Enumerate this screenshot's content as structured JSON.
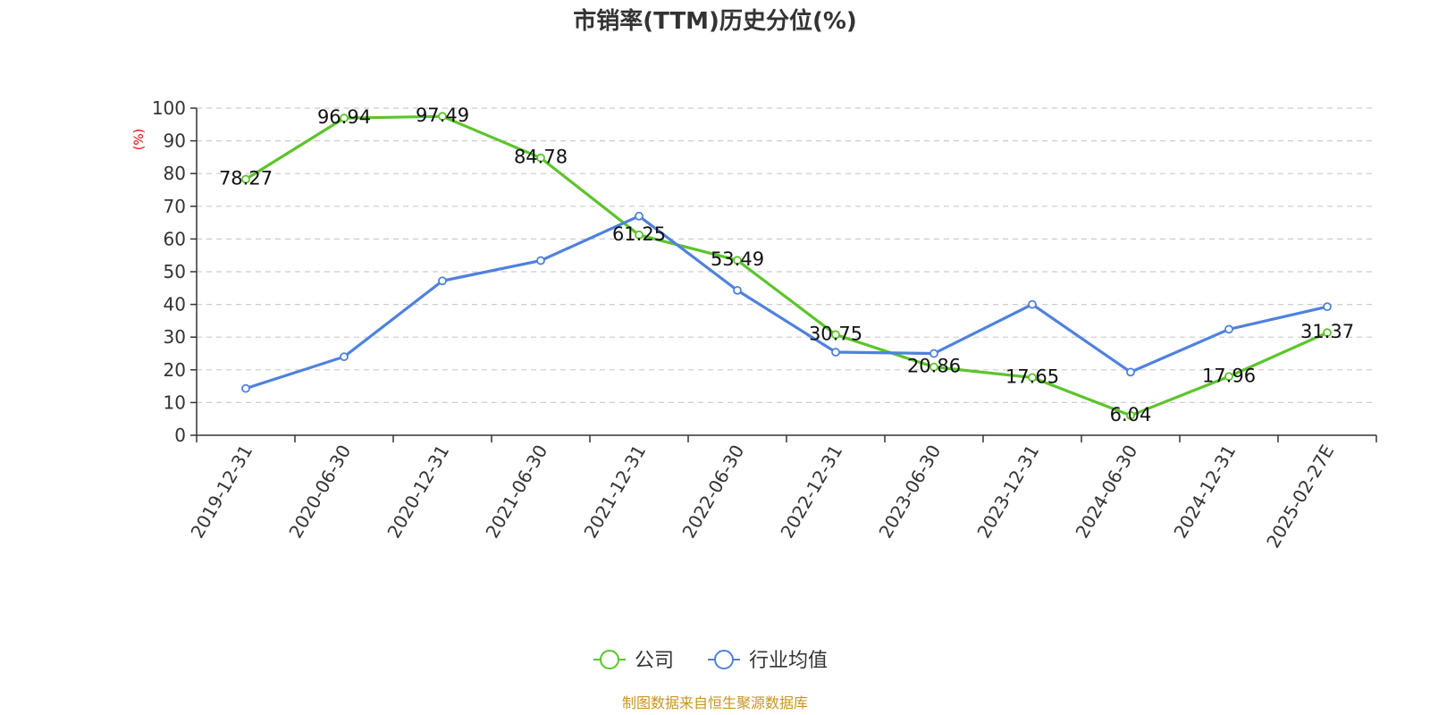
{
  "chart_data": {
    "type": "line",
    "title": "市销率(TTM)历史分位(%)",
    "xlabel": "",
    "ylabel": "(%)",
    "ylim": [
      0,
      100
    ],
    "yticks": [
      0,
      10,
      20,
      30,
      40,
      50,
      60,
      70,
      80,
      90,
      100
    ],
    "categories": [
      "2019-12-31",
      "2020-06-30",
      "2020-12-31",
      "2021-06-30",
      "2021-12-31",
      "2022-06-30",
      "2022-12-31",
      "2023-06-30",
      "2023-12-31",
      "2024-06-30",
      "2024-12-31",
      "2025-02-27E"
    ],
    "grid": true,
    "legend_position": "bottom-center",
    "series": [
      {
        "name": "公司",
        "color": "#5cc42b",
        "values": [
          78.27,
          96.94,
          97.49,
          84.78,
          61.25,
          53.49,
          30.75,
          20.86,
          17.65,
          6.04,
          17.96,
          31.37
        ],
        "labels": [
          "78.27",
          "96.94",
          "97.49",
          "84.78",
          "61.25",
          "53.49",
          "30.75",
          "20.86",
          "17.65",
          "6.04",
          "17.96",
          "31.37"
        ],
        "show_labels": true
      },
      {
        "name": "行业均值",
        "color": "#4f81dd",
        "values": [
          14.3,
          24.0,
          47.2,
          53.4,
          67.0,
          44.3,
          25.4,
          25.0,
          40.0,
          19.3,
          32.4,
          39.3
        ],
        "show_labels": false
      }
    ],
    "source": "制图数据来自恒生聚源数据库",
    "source_color": "#c8961e"
  }
}
